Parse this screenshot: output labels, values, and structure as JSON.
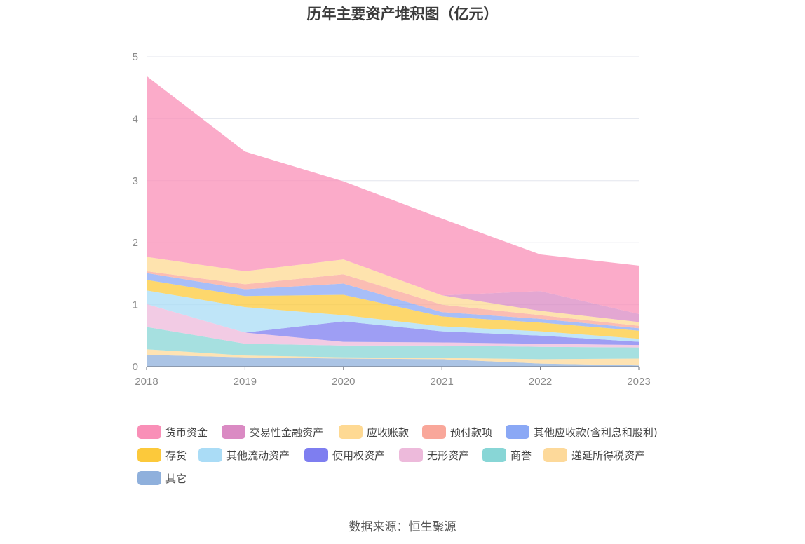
{
  "title": "历年主要资产堆积图（亿元）",
  "source": "数据来源：恒生聚源",
  "chart_data": {
    "type": "area",
    "stacked": true,
    "x": [
      "2018",
      "2019",
      "2020",
      "2021",
      "2022",
      "2023"
    ],
    "ylim": [
      0,
      5
    ],
    "yticks": [
      "0",
      "1",
      "2",
      "3",
      "4",
      "5"
    ],
    "grid": true,
    "legend_position": "bottom",
    "series": [
      {
        "name": "其它",
        "color": "#8fb0dc",
        "values": [
          0.19,
          0.15,
          0.13,
          0.12,
          0.05,
          0.02
        ]
      },
      {
        "name": "递延所得税资产",
        "color": "#fdd99a",
        "values": [
          0.09,
          0.03,
          0.02,
          0.02,
          0.07,
          0.11
        ]
      },
      {
        "name": "商誉",
        "color": "#88d6d6",
        "values": [
          0.36,
          0.19,
          0.19,
          0.2,
          0.2,
          0.18
        ]
      },
      {
        "name": "无形资产",
        "color": "#edbadb",
        "values": [
          0.37,
          0.18,
          0.06,
          0.05,
          0.05,
          0.04
        ]
      },
      {
        "name": "使用权资产",
        "color": "#7e7ef0",
        "values": [
          0.0,
          0.0,
          0.33,
          0.18,
          0.13,
          0.05
        ]
      },
      {
        "name": "其他流动资产",
        "color": "#aadcf6",
        "values": [
          0.22,
          0.41,
          0.1,
          0.08,
          0.07,
          0.05
        ]
      },
      {
        "name": "存货",
        "color": "#fcc93b",
        "values": [
          0.17,
          0.18,
          0.33,
          0.16,
          0.14,
          0.13
        ]
      },
      {
        "name": "其他应收款(含利息和股利)",
        "color": "#8aa8f5",
        "values": [
          0.11,
          0.11,
          0.18,
          0.07,
          0.06,
          0.04
        ]
      },
      {
        "name": "预付款项",
        "color": "#f9a79a",
        "values": [
          0.03,
          0.08,
          0.15,
          0.12,
          0.06,
          0.04
        ]
      },
      {
        "name": "应收账款",
        "color": "#fed993",
        "values": [
          0.23,
          0.21,
          0.24,
          0.15,
          0.07,
          0.06
        ]
      },
      {
        "name": "交易性金融资产",
        "color": "#da8ac3",
        "values": [
          0.0,
          0.0,
          0.0,
          0.0,
          0.32,
          0.13
        ]
      },
      {
        "name": "货币资金",
        "color": "#f98fb7",
        "values": [
          2.92,
          1.93,
          1.26,
          1.24,
          0.59,
          0.78
        ]
      }
    ]
  }
}
